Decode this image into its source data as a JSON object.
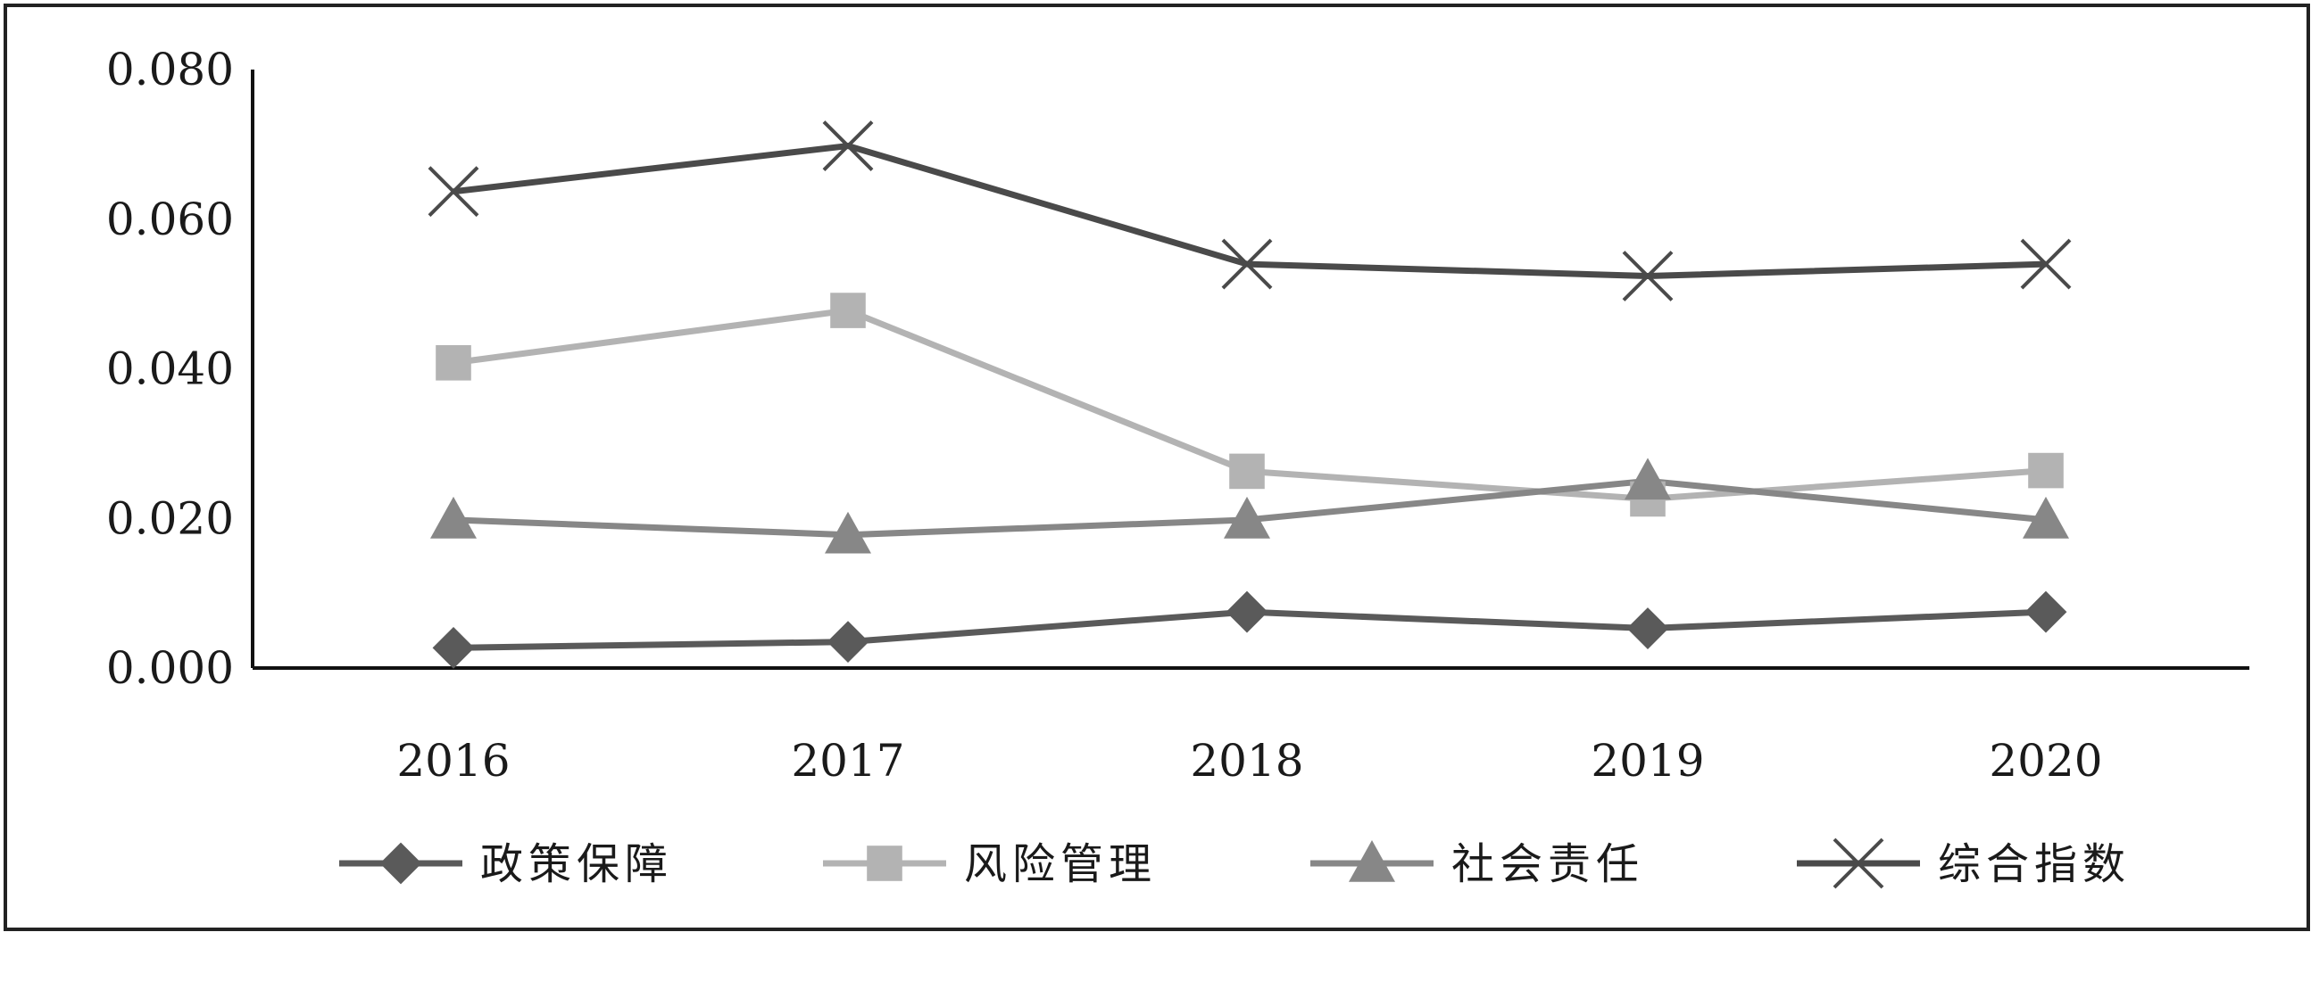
{
  "chart_data": {
    "type": "line",
    "categories": [
      "2016",
      "2017",
      "2018",
      "2019",
      "2020"
    ],
    "y_ticks": [
      "0.000",
      "0.020",
      "0.040",
      "0.060",
      "0.080"
    ],
    "ylim": [
      0,
      0.08
    ],
    "grid": false,
    "legend_position": "bottom",
    "series": [
      {
        "name": "政策保障",
        "values": [
          0.0027,
          0.0035,
          0.0075,
          0.0053,
          0.0075
        ],
        "color": "#5a5a5a",
        "marker": "diamond"
      },
      {
        "name": "风险管理",
        "values": [
          0.0408,
          0.0478,
          0.0263,
          0.0226,
          0.0264
        ],
        "color": "#b3b3b3",
        "marker": "square"
      },
      {
        "name": "社会责任",
        "values": [
          0.0198,
          0.0178,
          0.0198,
          0.025,
          0.0198
        ],
        "color": "#878787",
        "marker": "triangle"
      },
      {
        "name": "综合指数",
        "values": [
          0.0637,
          0.0698,
          0.054,
          0.0524,
          0.054
        ],
        "color": "#4a4a4a",
        "marker": "x"
      }
    ]
  }
}
